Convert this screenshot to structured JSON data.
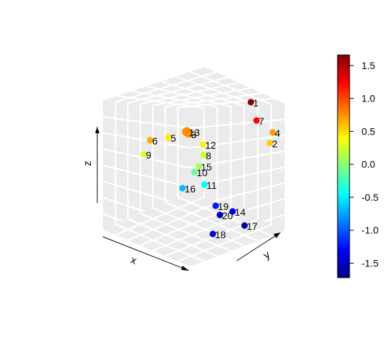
{
  "chart_data": {
    "type": "scatter",
    "title": "",
    "xlabel": "x",
    "ylabel": "y",
    "zlabel": "z",
    "grid": true,
    "legend": "colorbar-right",
    "colorbar": {
      "range": [
        -1.72,
        1.66
      ],
      "ticks": [
        "1.5",
        "1.0",
        "0.5",
        "0.0",
        "-0.5",
        "-1.0",
        "-1.5"
      ],
      "colors": [
        "#00007F",
        "#0000FF",
        "#007FFF",
        "#00FFFF",
        "#7FFF7F",
        "#FFFF00",
        "#FF7F00",
        "#FF0000",
        "#7F0000"
      ]
    },
    "points": [
      {
        "label": "1",
        "value": 1.62
      },
      {
        "label": "2",
        "value": 0.55
      },
      {
        "label": "3",
        "value": 0.74
      },
      {
        "label": "4",
        "value": 0.72
      },
      {
        "label": "5",
        "value": 0.47
      },
      {
        "label": "6",
        "value": 0.66
      },
      {
        "label": "7",
        "value": 1.22
      },
      {
        "label": "8",
        "value": 0.22
      },
      {
        "label": "9",
        "value": 0.27
      },
      {
        "label": "10",
        "value": -0.12
      },
      {
        "label": "11",
        "value": -0.45
      },
      {
        "label": "12",
        "value": 0.43
      },
      {
        "label": "13",
        "value": 0.78
      },
      {
        "label": "14",
        "value": -1.32
      },
      {
        "label": "15",
        "value": 0.12
      },
      {
        "label": "16",
        "value": -0.68
      },
      {
        "label": "17",
        "value": -1.62
      },
      {
        "label": "18",
        "value": -1.45
      },
      {
        "label": "19",
        "value": -1.22
      },
      {
        "label": "20",
        "value": -1.52
      }
    ]
  }
}
